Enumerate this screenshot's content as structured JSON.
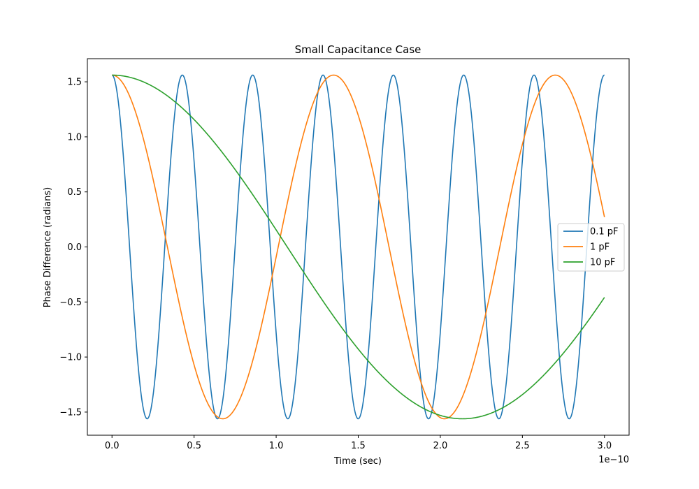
{
  "chart_data": {
    "type": "line",
    "title": "Small Capacitance Case",
    "xlabel": "Time (sec)",
    "ylabel": "Phase Difference (radians)",
    "x_offset_label": "1e−10",
    "x_scale_exponent": -10,
    "xlim": [
      -0.15,
      3.15
    ],
    "ylim": [
      -1.71,
      1.71
    ],
    "xticks": [
      0.0,
      0.5,
      1.0,
      1.5,
      2.0,
      2.5,
      3.0
    ],
    "xtick_labels": [
      "0.0",
      "0.5",
      "1.0",
      "1.5",
      "2.0",
      "2.5",
      "3.0"
    ],
    "yticks": [
      1.5,
      1.0,
      0.5,
      0.0,
      -0.5,
      -1.0,
      -1.5
    ],
    "ytick_labels": [
      "1.5",
      "1.0",
      "0.5",
      "0.0",
      "−0.5",
      "−1.0",
      "−1.5"
    ],
    "grid": false,
    "legend_position": "center-right",
    "x_range": [
      0,
      3.0
    ],
    "series": [
      {
        "name": "0.1 pF",
        "color": "#1f77b4",
        "amplitude": 1.5608,
        "period": 0.4285,
        "waveform": "cosine"
      },
      {
        "name": "1 pF",
        "color": "#ff7f0e",
        "amplitude": 1.5608,
        "period": 1.35,
        "waveform": "cosine-like"
      },
      {
        "name": "10 pF",
        "color": "#2ca02c",
        "amplitude": 1.5608,
        "period": 4.27,
        "waveform": "cosine"
      }
    ]
  }
}
